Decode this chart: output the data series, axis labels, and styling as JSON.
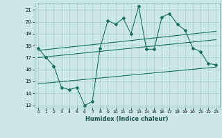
{
  "title": "",
  "xlabel": "Humidex (Indice chaleur)",
  "background_color": "#cce8e8",
  "grid_color": "#a8cccc",
  "line_color": "#1a7060",
  "xlim": [
    -0.5,
    23.5
  ],
  "ylim": [
    12.8,
    21.6
  ],
  "yticks": [
    13,
    14,
    15,
    16,
    17,
    18,
    19,
    20,
    21
  ],
  "xticks": [
    0,
    1,
    2,
    3,
    4,
    5,
    6,
    7,
    8,
    9,
    10,
    11,
    12,
    13,
    14,
    15,
    16,
    17,
    18,
    19,
    20,
    21,
    22,
    23
  ],
  "series1_x": [
    0,
    1,
    2,
    3,
    4,
    5,
    6,
    7,
    8,
    9,
    10,
    11,
    12,
    13,
    14,
    15,
    16,
    17,
    18,
    19,
    20,
    21,
    22,
    23
  ],
  "series1_y": [
    17.8,
    17.0,
    16.3,
    14.5,
    14.3,
    14.5,
    13.0,
    13.3,
    17.8,
    20.1,
    19.8,
    20.3,
    19.0,
    21.3,
    17.7,
    17.7,
    20.4,
    20.7,
    19.8,
    19.3,
    17.8,
    17.5,
    16.5,
    16.4
  ],
  "series2_x": [
    0,
    23
  ],
  "series2_y": [
    17.0,
    18.5
  ],
  "series3_x": [
    0,
    23
  ],
  "series3_y": [
    17.6,
    19.2
  ],
  "series4_x": [
    0,
    23
  ],
  "series4_y": [
    14.8,
    16.2
  ]
}
